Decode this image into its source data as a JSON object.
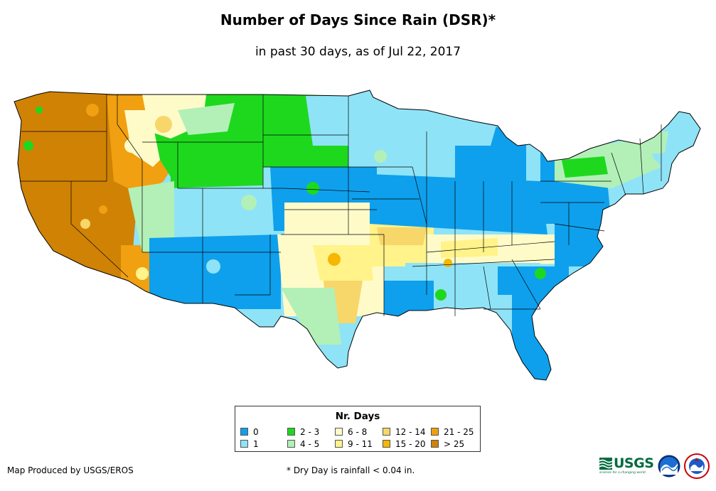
{
  "title": "Number of Days Since Rain (DSR)*",
  "subtitle": "in past 30 days, as of Jul 22, 2017",
  "legend": {
    "title": "Nr. Days",
    "items": [
      {
        "label": "0",
        "color": "#0ea0ec"
      },
      {
        "label": "1",
        "color": "#8fe3f7"
      },
      {
        "label": "2 - 3",
        "color": "#1ed81e"
      },
      {
        "label": "4 - 5",
        "color": "#b2f0b8"
      },
      {
        "label": "6 - 8",
        "color": "#fffbc9"
      },
      {
        "label": "9 - 11",
        "color": "#fff38a"
      },
      {
        "label": "12 - 14",
        "color": "#f7d66a"
      },
      {
        "label": "15 - 20",
        "color": "#f5b700"
      },
      {
        "label": "21 - 25",
        "color": "#f0a010"
      },
      {
        "label": "> 25",
        "color": "#d08205"
      }
    ]
  },
  "credit": "Map Produced by USGS/EROS",
  "footnote": "* Dry Day is rainfall < 0.04 in.",
  "logos": {
    "usgs_text": "USGS",
    "usgs_tagline": "science for a changing world",
    "usgs_color": "#006b3f",
    "noaa_icon": "noaa-logo-icon",
    "nws_icon": "nws-logo-icon"
  }
}
